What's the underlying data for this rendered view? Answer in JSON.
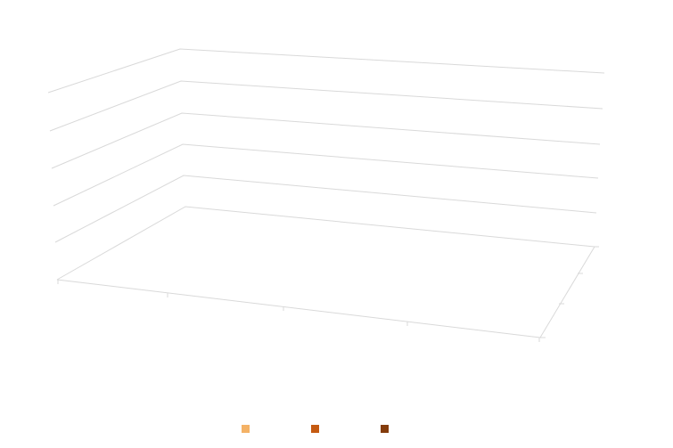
{
  "chart_data": {
    "type": "bar",
    "title": "",
    "xlabel": "",
    "ylabel": "",
    "categories": [
      "",
      "",
      "",
      ""
    ],
    "series": [
      {
        "name": "",
        "color": "#f4b266",
        "values": [
          0,
          0,
          0,
          0
        ]
      },
      {
        "name": "",
        "color": "#c55a11",
        "values": [
          0,
          0,
          0,
          0
        ]
      },
      {
        "name": "",
        "color": "#843c0c",
        "values": [
          0,
          0,
          0,
          0
        ]
      }
    ],
    "ylim": [
      0,
      5
    ],
    "grid": true,
    "three_d": true,
    "legend_position": "bottom"
  }
}
